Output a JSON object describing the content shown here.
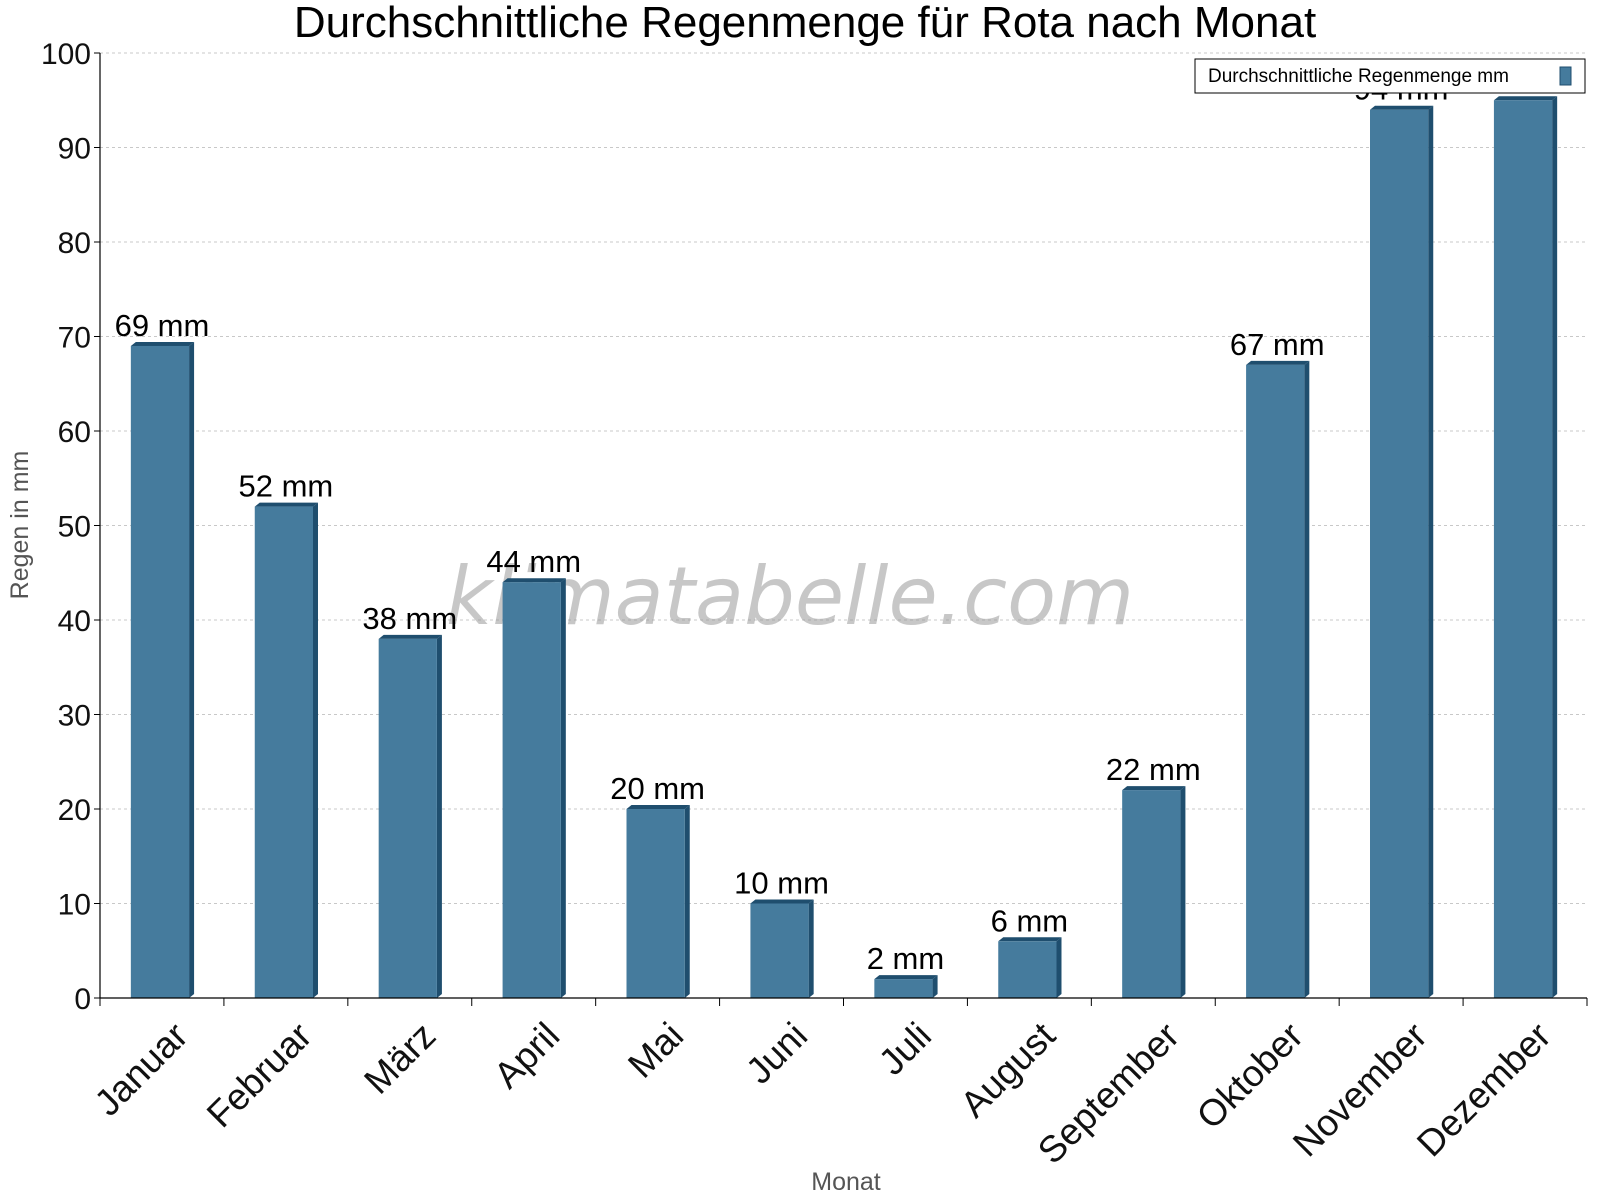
{
  "chart_data": {
    "type": "bar",
    "title": "Durchschnittliche Regenmenge für Rota nach Monat",
    "xlabel": "Monat",
    "ylabel": "Regen in mm",
    "categories": [
      "Januar",
      "Februar",
      "März",
      "April",
      "Mai",
      "Juni",
      "Juli",
      "August",
      "September",
      "Oktober",
      "November",
      "Dezember"
    ],
    "series": [
      {
        "name": "Durchschnittliche Regenmenge mm",
        "values": [
          69,
          52,
          38,
          44,
          20,
          10,
          2,
          6,
          22,
          67,
          94,
          95
        ],
        "labels": [
          "69 mm",
          "52 mm",
          "38 mm",
          "44 mm",
          "20 mm",
          "10 mm",
          "2 mm",
          "6 mm",
          "22 mm",
          "67 mm",
          "94 mm",
          ""
        ],
        "color": "#457b9d",
        "side_color": "#1f4e6e"
      }
    ],
    "ylim": [
      0,
      100
    ],
    "yticks": [
      0,
      10,
      20,
      30,
      40,
      50,
      60,
      70,
      80,
      90,
      100
    ],
    "grid": true,
    "legend": "top-right",
    "watermark": "klimatabelle.com"
  }
}
